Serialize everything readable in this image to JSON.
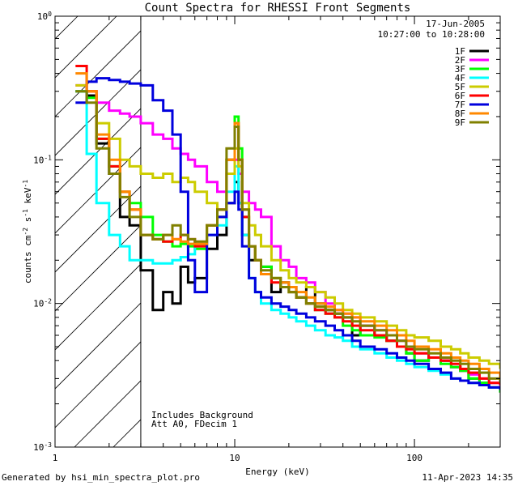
{
  "chart_data": {
    "type": "line",
    "title": "Count Spectra for RHESSI Front Segments",
    "date": "17-Jun-2005",
    "time_range": "10:27:00 to 10:28:00",
    "xlabel": "Energy (keV)",
    "ylabel_parts": {
      "a": "counts cm",
      "b": "-2",
      "c": " s",
      "d": "-1",
      "e": " keV",
      "f": "-1"
    },
    "xscale": "log",
    "yscale": "log",
    "xlim": [
      1,
      300
    ],
    "ylim": [
      0.001,
      1.0
    ],
    "x_ticks": [
      {
        "value": 1,
        "label": "1"
      },
      {
        "value": 10,
        "label": "10"
      },
      {
        "value": 100,
        "label": "100"
      }
    ],
    "y_ticks": [
      {
        "value": 1.0,
        "base": "10",
        "exp": "0"
      },
      {
        "value": 0.1,
        "base": "10",
        "exp": "-1"
      },
      {
        "value": 0.01,
        "base": "10",
        "exp": "-2"
      },
      {
        "value": 0.001,
        "base": "10",
        "exp": "-3"
      }
    ],
    "hatched_region_max_energy": 3.0,
    "annotations": [
      "Includes Background",
      "Att A0, FDecim 1"
    ],
    "footer_left": "Generated by hsi_min_spectra_plot.pro",
    "footer_right": "11-Apr-2023 14:35",
    "energy_bins": [
      1.3,
      1.5,
      1.7,
      2.0,
      2.3,
      2.6,
      3.0,
      3.5,
      4.0,
      4.5,
      5.0,
      5.5,
      6.0,
      7.0,
      8.0,
      9.0,
      10.0,
      10.5,
      11.0,
      12.0,
      13.0,
      14.0,
      16.0,
      18.0,
      20.0,
      22.0,
      25.0,
      28.0,
      32.0,
      36.0,
      40.0,
      45.0,
      50.0,
      60.0,
      70.0,
      80.0,
      90.0,
      100.0,
      120.0,
      140.0,
      160.0,
      180.0,
      200.0,
      230.0,
      260.0,
      300.0
    ],
    "series": [
      {
        "name": "1F",
        "color": "#000000",
        "values": [
          0.3,
          0.28,
          0.13,
          0.08,
          0.04,
          0.035,
          0.017,
          0.009,
          0.012,
          0.01,
          0.018,
          0.014,
          0.015,
          0.024,
          0.03,
          0.05,
          0.07,
          0.05,
          0.03,
          0.02,
          0.02,
          0.018,
          0.012,
          0.014,
          0.013,
          0.011,
          0.013,
          0.01,
          0.009,
          0.0085,
          0.008,
          0.006,
          0.007,
          0.006,
          0.0055,
          0.005,
          0.0045,
          0.004,
          0.0042,
          0.004,
          0.0036,
          0.0034,
          0.003,
          0.0028,
          0.0026,
          0.0024
        ]
      },
      {
        "name": "2F",
        "color": "#ff00ff",
        "values": [
          0.33,
          0.3,
          0.25,
          0.22,
          0.21,
          0.2,
          0.18,
          0.15,
          0.14,
          0.12,
          0.11,
          0.1,
          0.09,
          0.07,
          0.06,
          0.08,
          0.1,
          0.08,
          0.06,
          0.05,
          0.045,
          0.04,
          0.025,
          0.02,
          0.018,
          0.015,
          0.014,
          0.012,
          0.01,
          0.009,
          0.0085,
          0.008,
          0.007,
          0.0065,
          0.006,
          0.0055,
          0.005,
          0.0045,
          0.0042,
          0.004,
          0.0036,
          0.0034,
          0.0032,
          0.003,
          0.0028,
          0.0026
        ]
      },
      {
        "name": "3F",
        "color": "#00ff00",
        "values": [
          0.3,
          0.27,
          0.14,
          0.09,
          0.06,
          0.05,
          0.04,
          0.03,
          0.027,
          0.025,
          0.026,
          0.025,
          0.024,
          0.035,
          0.04,
          0.1,
          0.2,
          0.12,
          0.04,
          0.025,
          0.02,
          0.018,
          0.015,
          0.013,
          0.012,
          0.011,
          0.01,
          0.009,
          0.0085,
          0.008,
          0.007,
          0.0065,
          0.006,
          0.0058,
          0.0055,
          0.005,
          0.0045,
          0.004,
          0.0042,
          0.0038,
          0.0036,
          0.0034,
          0.003,
          0.0028,
          0.0026,
          0.0024
        ]
      },
      {
        "name": "4F",
        "color": "#00ffff",
        "values": [
          0.3,
          0.11,
          0.05,
          0.03,
          0.025,
          0.02,
          0.02,
          0.019,
          0.019,
          0.02,
          0.021,
          0.022,
          0.025,
          0.03,
          0.035,
          0.06,
          0.09,
          0.05,
          0.03,
          0.015,
          0.012,
          0.01,
          0.009,
          0.0085,
          0.008,
          0.0075,
          0.007,
          0.0065,
          0.006,
          0.0058,
          0.0055,
          0.005,
          0.0048,
          0.0045,
          0.0042,
          0.004,
          0.0038,
          0.0036,
          0.0034,
          0.0032,
          0.003,
          0.0029,
          0.0028,
          0.0027,
          0.0026,
          0.0025
        ]
      },
      {
        "name": "5F",
        "color": "#cccc00",
        "values": [
          0.33,
          0.3,
          0.18,
          0.14,
          0.1,
          0.09,
          0.08,
          0.075,
          0.08,
          0.07,
          0.075,
          0.07,
          0.06,
          0.05,
          0.04,
          0.08,
          0.12,
          0.09,
          0.05,
          0.035,
          0.03,
          0.025,
          0.02,
          0.017,
          0.015,
          0.014,
          0.013,
          0.012,
          0.011,
          0.01,
          0.009,
          0.0085,
          0.008,
          0.0075,
          0.007,
          0.0065,
          0.006,
          0.0058,
          0.0055,
          0.005,
          0.0048,
          0.0045,
          0.0042,
          0.004,
          0.0038,
          0.0035
        ]
      },
      {
        "name": "6F",
        "color": "#ff0000",
        "values": [
          0.45,
          0.3,
          0.14,
          0.09,
          0.06,
          0.045,
          0.03,
          0.028,
          0.027,
          0.028,
          0.03,
          0.028,
          0.025,
          0.035,
          0.045,
          0.1,
          0.18,
          0.1,
          0.04,
          0.025,
          0.02,
          0.016,
          0.014,
          0.013,
          0.012,
          0.011,
          0.01,
          0.009,
          0.0085,
          0.008,
          0.0075,
          0.007,
          0.0065,
          0.006,
          0.0055,
          0.005,
          0.0048,
          0.0045,
          0.0042,
          0.004,
          0.0038,
          0.0035,
          0.0033,
          0.003,
          0.0028,
          0.0027
        ]
      },
      {
        "name": "7F",
        "color": "#0000dd",
        "values": [
          0.25,
          0.35,
          0.37,
          0.36,
          0.35,
          0.34,
          0.33,
          0.26,
          0.22,
          0.15,
          0.06,
          0.02,
          0.012,
          0.03,
          0.04,
          0.05,
          0.06,
          0.045,
          0.025,
          0.015,
          0.012,
          0.011,
          0.01,
          0.0095,
          0.009,
          0.0085,
          0.008,
          0.0075,
          0.007,
          0.0065,
          0.006,
          0.0055,
          0.005,
          0.0048,
          0.0045,
          0.0042,
          0.004,
          0.0038,
          0.0035,
          0.0033,
          0.003,
          0.0029,
          0.0028,
          0.0027,
          0.0026,
          0.0025
        ]
      },
      {
        "name": "8F",
        "color": "#ff8800",
        "values": [
          0.4,
          0.3,
          0.15,
          0.1,
          0.06,
          0.045,
          0.03,
          0.028,
          0.03,
          0.028,
          0.027,
          0.026,
          0.026,
          0.035,
          0.045,
          0.1,
          0.18,
          0.1,
          0.045,
          0.025,
          0.02,
          0.016,
          0.015,
          0.014,
          0.013,
          0.012,
          0.011,
          0.01,
          0.0095,
          0.009,
          0.0085,
          0.008,
          0.0075,
          0.007,
          0.0065,
          0.006,
          0.0055,
          0.005,
          0.0048,
          0.0045,
          0.0042,
          0.004,
          0.0038,
          0.0035,
          0.0033,
          0.003
        ]
      },
      {
        "name": "9F",
        "color": "#808000",
        "values": [
          0.3,
          0.25,
          0.12,
          0.08,
          0.055,
          0.04,
          0.03,
          0.028,
          0.03,
          0.035,
          0.03,
          0.028,
          0.027,
          0.035,
          0.045,
          0.12,
          0.17,
          0.1,
          0.045,
          0.025,
          0.02,
          0.017,
          0.015,
          0.013,
          0.012,
          0.011,
          0.01,
          0.0095,
          0.009,
          0.0085,
          0.008,
          0.0075,
          0.007,
          0.0065,
          0.006,
          0.0055,
          0.005,
          0.0048,
          0.0045,
          0.0042,
          0.004,
          0.0038,
          0.0035,
          0.0033,
          0.003,
          0.0028
        ]
      }
    ]
  }
}
